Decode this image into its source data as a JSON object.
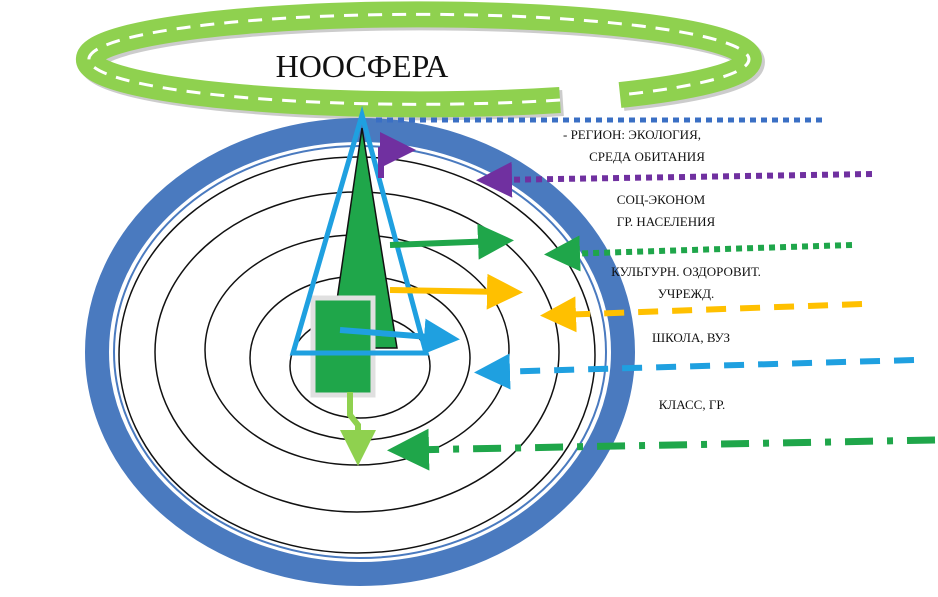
{
  "title": "НООСФЕРА",
  "levels": [
    {
      "lines": [
        "- РЕГИОН: ЭКОЛОГИЯ,",
        "СРЕДА ОБИТАНИЯ"
      ]
    },
    {
      "lines": [
        "СОЦ-ЭКОНОМ",
        "ГР. НАСЕЛЕНИЯ"
      ]
    },
    {
      "lines": [
        "КУЛЬТУРН. ОЗДОРОВИТ.",
        "УЧРЕЖД."
      ]
    },
    {
      "lines": [
        "ШКОЛА, ВУЗ"
      ]
    },
    {
      "lines": [
        "КЛАСС, ГР."
      ]
    }
  ]
}
